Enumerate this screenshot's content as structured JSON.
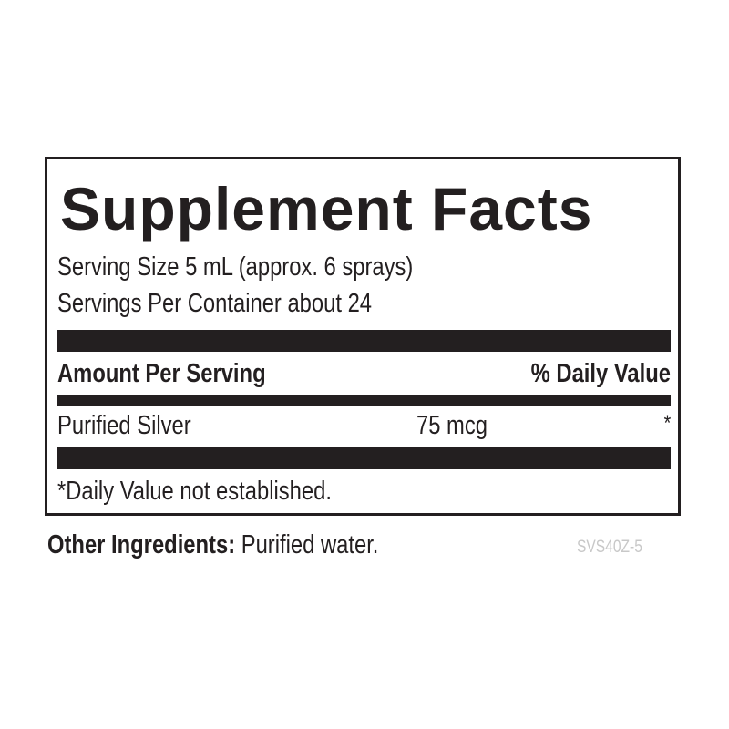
{
  "title": "Supplement Facts",
  "serving_size": "Serving Size 5 mL (approx. 6 sprays)",
  "servings_per_container": "Servings Per Container about 24",
  "header": {
    "amount": "Amount Per Serving",
    "dv": "% Daily Value"
  },
  "rows": [
    {
      "name": "Purified Silver",
      "amount": "75 mcg",
      "dv": "*"
    }
  ],
  "footnote": "*Daily Value not established.",
  "other": {
    "label": "Other Ingredients:",
    "value": " Purified water."
  },
  "code": "SVS40Z-5"
}
